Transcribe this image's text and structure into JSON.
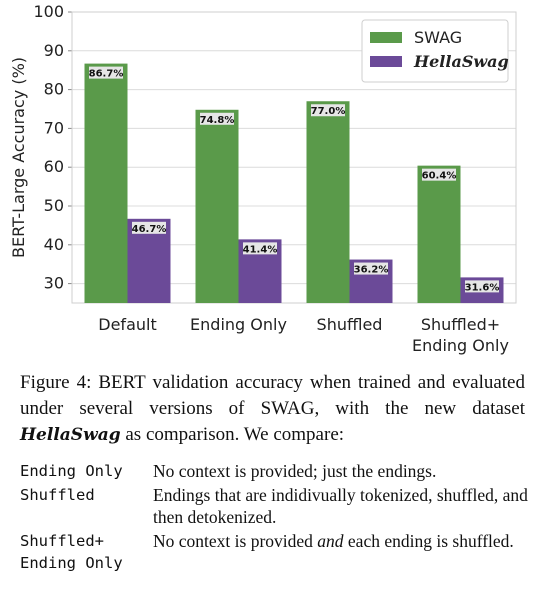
{
  "chart_data": {
    "type": "bar",
    "ylabel": "BERT-Large Accuracy (%)",
    "ylim": [
      25,
      100
    ],
    "yticks": [
      30,
      40,
      50,
      60,
      70,
      80,
      90,
      100
    ],
    "categories": [
      "Default",
      "Ending Only",
      "Shuffled",
      "Shuffled+\nEnding Only"
    ],
    "series": [
      {
        "name": "SWAG",
        "color": "#5a9a4a",
        "values": [
          86.7,
          74.8,
          77.0,
          60.4
        ],
        "labels": [
          "86.7%",
          "74.8%",
          "77.0%",
          "60.4%"
        ]
      },
      {
        "name": "HellaSwag",
        "color": "#6b4a98",
        "values": [
          46.7,
          41.4,
          36.2,
          31.6
        ],
        "labels": [
          "46.7%",
          "41.4%",
          "36.2%",
          "31.6%"
        ]
      }
    ],
    "legend_position": "top-right",
    "grid": true
  },
  "caption": {
    "figure_label": "Figure 4:",
    "text_before": "BERT validation accuracy when trained and evaluated under several versions of SWAG, with the new dataset",
    "dataset_name": "HellaSwag",
    "text_after": "as comparison. We compare:"
  },
  "definitions": [
    {
      "term": "Ending Only",
      "desc_html": "No context is provided; just the endings."
    },
    {
      "term": "Shuffled",
      "desc_html": "Endings that are indidivually tokenized, shuffled, and then detokenized."
    },
    {
      "term": "Shuffled+\nEnding Only",
      "desc_before": "No context is provided",
      "desc_em": "and",
      "desc_after": "each ending is shuffled."
    }
  ]
}
